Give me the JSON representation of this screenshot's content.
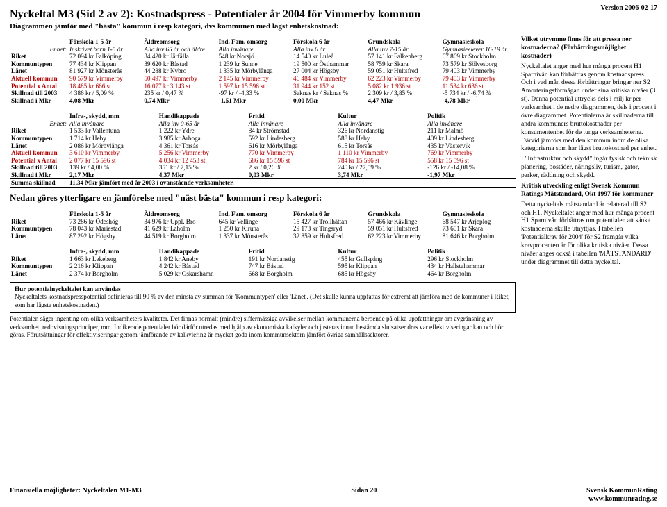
{
  "version": "Version 2006-02-17",
  "title": "Nyckeltal M3 (Sid 2 av 2): Kostnadspress - Potentialer år 2004 för Vimmerby kommun",
  "subtitle": "Diagrammen jämför med \"bästa\" kommun i resp kategori, dvs kommunen med lägst enhetskostnad:",
  "tableA": {
    "headers": [
      "",
      "Förskola 1-5 år",
      "Äldreomsorg",
      "Ind. Fam. omsorg",
      "Förskola 6 år",
      "Grundskola",
      "Gymnasieskola"
    ],
    "enhet": [
      "Enhet:",
      "Inskrivet barn 1-5 år",
      "Alla inv 65 år och äldre",
      "Alla invånare",
      "Alla inv 6 år",
      "Alla inv 7-15 år",
      "Gymnasieelever 16-19 år"
    ],
    "rows": [
      {
        "label": "Riket",
        "cells": [
          "72 094 kr Falköping",
          "34 420 kr Järfälla",
          "548 kr Norsjö",
          "14 540 kr Luleå",
          "57 141 kr Falkenberg",
          "67 869 kr Stockholm"
        ]
      },
      {
        "label": "Kommuntypen",
        "cells": [
          "77 434 kr Klippan",
          "39 620 kr Båstad",
          "1 239 kr Sunne",
          "19 500 kr Östhammar",
          "58 759 kr Skara",
          "73 579 kr Sölvesborg"
        ]
      },
      {
        "label": "Länet",
        "cells": [
          "81 927 kr Mönsterås",
          "44 288 kr Nybro",
          "1 335 kr Mörbylånga",
          "27 004 kr Högsby",
          "59 051 kr Hultsfred",
          "79 403 kr Vimmerby"
        ]
      },
      {
        "label": "Aktuell kommun",
        "red": true,
        "cells": [
          "90 579 kr Vimmerby",
          "50 497 kr Vimmerby",
          "2 145 kr Vimmerby",
          "46 484 kr Vimmerby",
          "62 223 kr Vimmerby",
          "79 403 kr Vimmerby"
        ]
      },
      {
        "label": "Potential x Antal",
        "red": true,
        "cells": [
          "18 485 kr     666 st",
          "16 077 kr     3 143 st",
          "1 597 kr     15 596 st",
          "31 944 kr     152 st",
          "5 082 kr     1 936 st",
          "11 534 kr     636 st"
        ]
      },
      {
        "label": "Skillnad till 2003",
        "cells": [
          "4 386 kr / 5,09 %",
          "235 kr / 0,47 %",
          "-97 kr / -4,33 %",
          "Saknas kr / Saknas %",
          "2 309 kr / 3,85 %",
          "-5 734 kr / -6,74 %"
        ]
      },
      {
        "label": "Skillnad i Mkr",
        "bold": true,
        "cells": [
          "4,08 Mkr",
          "0,74 Mkr",
          "-1,51 Mkr",
          "0,00 Mkr",
          "4,47 Mkr",
          "-4,78 Mkr"
        ]
      }
    ]
  },
  "tableB": {
    "headers": [
      "",
      "Infra-, skydd, mm",
      "Handikappade",
      "Fritid",
      "Kultur",
      "Politik"
    ],
    "enhet": [
      "Enhet:",
      "Alla invånare",
      "Alla inv 0-65 år",
      "Alla invånare",
      "Alla invånare",
      "Alla invånare"
    ],
    "rows": [
      {
        "label": "Riket",
        "cells": [
          "1 533 kr Vallentuna",
          "1 222 kr Ydre",
          "84 kr Strömstad",
          "326 kr Nordanstig",
          "211 kr Malmö"
        ]
      },
      {
        "label": "Kommuntypen",
        "cells": [
          "1 714 kr Heby",
          "3 985 kr Arboga",
          "592 kr Lindesberg",
          "588 kr Heby",
          "409 kr Lindesberg"
        ]
      },
      {
        "label": "Länet",
        "cells": [
          "2 086 kr Mörbylånga",
          "4 361 kr Torsås",
          "616 kr Mörbylånga",
          "615 kr Torsås",
          "435 kr Västervik"
        ]
      },
      {
        "label": "Aktuell kommun",
        "red": true,
        "cells": [
          "3 610 kr Vimmerby",
          "5 256 kr Vimmerby",
          "770 kr Vimmerby",
          "1 110 kr Vimmerby",
          "769 kr Vimmerby"
        ]
      },
      {
        "label": "Potential x Antal",
        "red": true,
        "cells": [
          "2 077 kr   15 596 st",
          "4 034 kr   12 453 st",
          "686 kr   15 596 st",
          "784 kr   15 596 st",
          "558 kr   15 596 st"
        ]
      },
      {
        "label": "Skillnad till 2003",
        "cells": [
          "139 kr / 4,00 %",
          "351 kr / 7,15 %",
          "2 kr / 0,26 %",
          "240 kr / 27,59 %",
          "-126 kr / -14,08 %"
        ]
      },
      {
        "label": "Skillnad i Mkr",
        "bold": true,
        "cells": [
          "2,17 Mkr",
          "4,37 Mkr",
          "0,03 Mkr",
          "3,74 Mkr",
          "-1,97 Mkr"
        ]
      }
    ],
    "summa": {
      "label": "Summa skillnad",
      "text": "11,34 Mkr jämfört med år 2003 i ovanstående verksamheter."
    }
  },
  "nedan": "Nedan göres ytterligare en jämförelse med \"näst bästa\" kommun i resp kategori:",
  "tableC": {
    "headers": [
      "",
      "Förskola 1-5 år",
      "Äldreomsorg",
      "Ind. Fam. omsorg",
      "Förskola 6 år",
      "Grundskola",
      "Gymnasieskola"
    ],
    "rows": [
      {
        "label": "Riket",
        "cells": [
          "73 286 kr Ödeshög",
          "34 976 kr Uppl. Bro",
          "645 kr Vellinge",
          "15 427 kr Trollhättan",
          "57 466 kr Kävlinge",
          "68 547 kr Arjeplog"
        ]
      },
      {
        "label": "Kommuntypen",
        "cells": [
          "78 043 kr Mariestad",
          "41 629 kr Laholm",
          "1 250 kr Kiruna",
          "29 173 kr Tingsryd",
          "59 051 kr Hultsfred",
          "73 601 kr Skara"
        ]
      },
      {
        "label": "Länet",
        "cells": [
          "87 292 kr Högsby",
          "44 519 kr Borgholm",
          "1 337 kr Mönsterås",
          "32 859 kr Hultsfred",
          "62 223 kr Vimmerby",
          "81 646 kr Borgholm"
        ]
      }
    ]
  },
  "tableD": {
    "headers": [
      "",
      "Infra-, skydd, mm",
      "Handikappade",
      "Fritid",
      "Kultur",
      "Politik"
    ],
    "rows": [
      {
        "label": "Riket",
        "cells": [
          "1 663 kr Lekeberg",
          "1 842 kr Aneby",
          "191 kr Nordanstig",
          "455 kr Gullspång",
          "296 kr Stockholm"
        ]
      },
      {
        "label": "Kommuntypen",
        "cells": [
          "2 216 kr Klippan",
          "4 242 kr Båstad",
          "747 kr Båstad",
          "595 kr Klippan",
          "434 kr Hallstahammar"
        ]
      },
      {
        "label": "Länet",
        "cells": [
          "2 374 kr Borgholm",
          "5 029 kr Oskarshamn",
          "668 kr Borgholm",
          "685 kr Högsby",
          "464 kr Borgholm"
        ]
      }
    ]
  },
  "box": {
    "title": "Hur potentialnyckeltalet kan användas",
    "body": "Nyckeltalets kostnadspresspotential definieras till 90 % av den minsta av summan för 'Kommuntypen' eller 'Länet'. (Det skulle kunna uppfattas för extremt att jämföra med de kommuner i Riket, som har lägsta enhetskostnaden.)"
  },
  "para": "Potentialen säger ingenting om olika verksamheters kvaliteter.  Det finnas normalt (mindre) siffermässiga avvikelser mellan kommunerna beroende på olika uppfattningar om avgränsning av verksamhet, redovisningsprinciper, mm.   Indikerade potentialer bör därför utredas med hjälp av ekonomiska kalkyler och justeras innan bestämda slutsatser dras var effektiviseringar kan och bör göras. Förutsättningar för effektiviseringar genom jämförande av kalkylering är mycket goda inom kommunsektorn jämfört övriga samhällssektorer.",
  "side": {
    "p1": "Vilket utrymme finns för att pressa ner kostnaderna? (Förbättringsmöjlighet kostnader)",
    "p2": "Nyckeltalet anger med hur många procent H1 Sparnivån kan förbättras genom kostnadspress. Och i vad mån dessa förbättringar bringar ner S2 Amorteringsförmågan under sina kritiska nivåer (3 st).  Denna potential uttrycks dels i milj kr per verksamhet i de nedre diagrammen, dels i procent i övre diagrammet. Potentialerna är skillnaderna till andra kommuners bruttokostnader per konsumentenhet för de tunga verksamheterna. Därvid jämförs med den kommun inom de olika kategorierna som har lägst bruttokostnad per enhet.",
    "p2b": "I \"Infrastruktur och skydd\" ingår fysisk och teknisk planering, bostäder, näringsliv, turism, gator, parker, räddning och skydd.",
    "p3t": "Kritisk utveckling enligt Svensk Kommun Ratings Mätstandard, Okt 1997 för kommuner",
    "p3": "Detta nyckeltals mätstandard är relaterad till S2 och H1. Nyckeltalet anger med hur många procent H1 Sparnivån förbättras om potentialen att sänka kostnaderna skulle utnyttjas. I tabellen 'Potentialkrav för 2004' för S2 framgår vilka kravprocenten är för olika kritiska nivåer. Dessa nivåer anges också i tabellen 'MÄTSTANDARD' under diagrammet till detta nyckeltal."
  },
  "footer": {
    "left": "Finansiella möjligheter: Nyckeltalen M1-M3",
    "center": "Sidan 20",
    "rightTop": "Svensk KommunRating",
    "rightBot": "www.kommunrating.se"
  }
}
